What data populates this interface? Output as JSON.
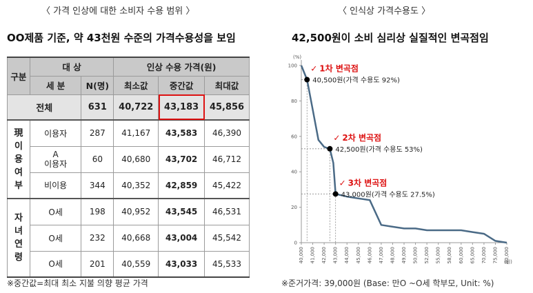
{
  "left": {
    "panel_title": "〈 가격 인상에 대한 소비자 수용 범위 〉",
    "headline": "OO제품 기준, 약 43천원 수준의 가격수용성을 보임",
    "table": {
      "h_group": "구분",
      "h_target": "대 상",
      "h_sub": "세 분",
      "h_n": "N(명)",
      "h_range": "인상 수용 가격(원)",
      "h_min": "최소값",
      "h_mid": "중간값",
      "h_max": "최대값",
      "total": {
        "label": "전체",
        "n": "631",
        "min": "40,722",
        "mid": "43,183",
        "max": "45,856"
      },
      "group1_label": "現\n이\n용\n여\n부",
      "group1_rows": [
        {
          "label": "이용자",
          "n": "287",
          "min": "41,167",
          "mid": "43,583",
          "max": "46,390"
        },
        {
          "label": "A\n이용자",
          "n": "60",
          "min": "40,680",
          "mid": "43,702",
          "max": "46,712"
        },
        {
          "label": "비이용",
          "n": "344",
          "min": "40,352",
          "mid": "42,859",
          "max": "45,422"
        }
      ],
      "group2_label": "자\n녀\n연\n령",
      "group2_rows": [
        {
          "label": "O세",
          "n": "198",
          "min": "40,952",
          "mid": "43,545",
          "max": "46,531"
        },
        {
          "label": "O세",
          "n": "232",
          "min": "40,668",
          "mid": "43,004",
          "max": "45,542"
        },
        {
          "label": "O세",
          "n": "201",
          "min": "40,559",
          "mid": "43,033",
          "max": "45,533"
        }
      ]
    },
    "footnote": "※중간값=최대 최소 지불 의향 평균 가격"
  },
  "right": {
    "panel_title": "〈 인식상 가격수용도 〉",
    "headline": "42,500원이 소비 심리상 실질적인 변곡점임",
    "footnote": "※준거가격: 39,000원 (Base: 만O ~O세 학부모, Unit: %)"
  },
  "chart_data": {
    "type": "line",
    "title": "인식상 가격수용도",
    "ylabel": "(%)",
    "xlabel": "(원)",
    "ylim": [
      0,
      100
    ],
    "xlim": [
      40000,
      80000
    ],
    "yticks": [
      "0",
      "20",
      "40",
      "60",
      "80",
      "100"
    ],
    "xticks": [
      "40,000",
      "41,000",
      "42,000",
      "43,000",
      "44,000",
      "45,000",
      "46,000",
      "47,000",
      "48,000",
      "49,000",
      "50,000",
      "52,000",
      "55,000",
      "58,000",
      "60,000",
      "65,000",
      "70,000",
      "75,000",
      "80,000"
    ],
    "x": [
      40000,
      40500,
      41000,
      41500,
      42000,
      42500,
      42800,
      43000,
      44000,
      45000,
      46000,
      47000,
      48000,
      49000,
      50000,
      52000,
      55000,
      58000,
      60000,
      65000,
      70000,
      75000,
      80000
    ],
    "xpos": [
      0,
      0.5,
      1,
      1.5,
      2,
      2.5,
      2.8,
      3,
      4,
      5,
      6,
      7,
      8,
      9,
      10,
      11,
      12,
      13,
      14,
      15,
      16,
      17,
      18
    ],
    "values": [
      100,
      92,
      75,
      58,
      54,
      53,
      45,
      27.5,
      26,
      25,
      24,
      10,
      9,
      8,
      8,
      7,
      7,
      7,
      7,
      6,
      5,
      1,
      0
    ],
    "annotations": [
      {
        "label": "1차 변곡점",
        "detail": "40,500원(가격 수용도 92%)",
        "x": 40500,
        "xpos": 0.5,
        "y": 92
      },
      {
        "label": "2차 변곡점",
        "detail": "42,500원(가격 수용도 53%)",
        "x": 42500,
        "xpos": 2.5,
        "y": 53
      },
      {
        "label": "3차 변곡점",
        "detail": "43,000원(가격 수용도 27.5%)",
        "x": 43000,
        "xpos": 3,
        "y": 27.5
      }
    ],
    "line_color": "#4a6a86",
    "accent_color": "#d11111"
  }
}
